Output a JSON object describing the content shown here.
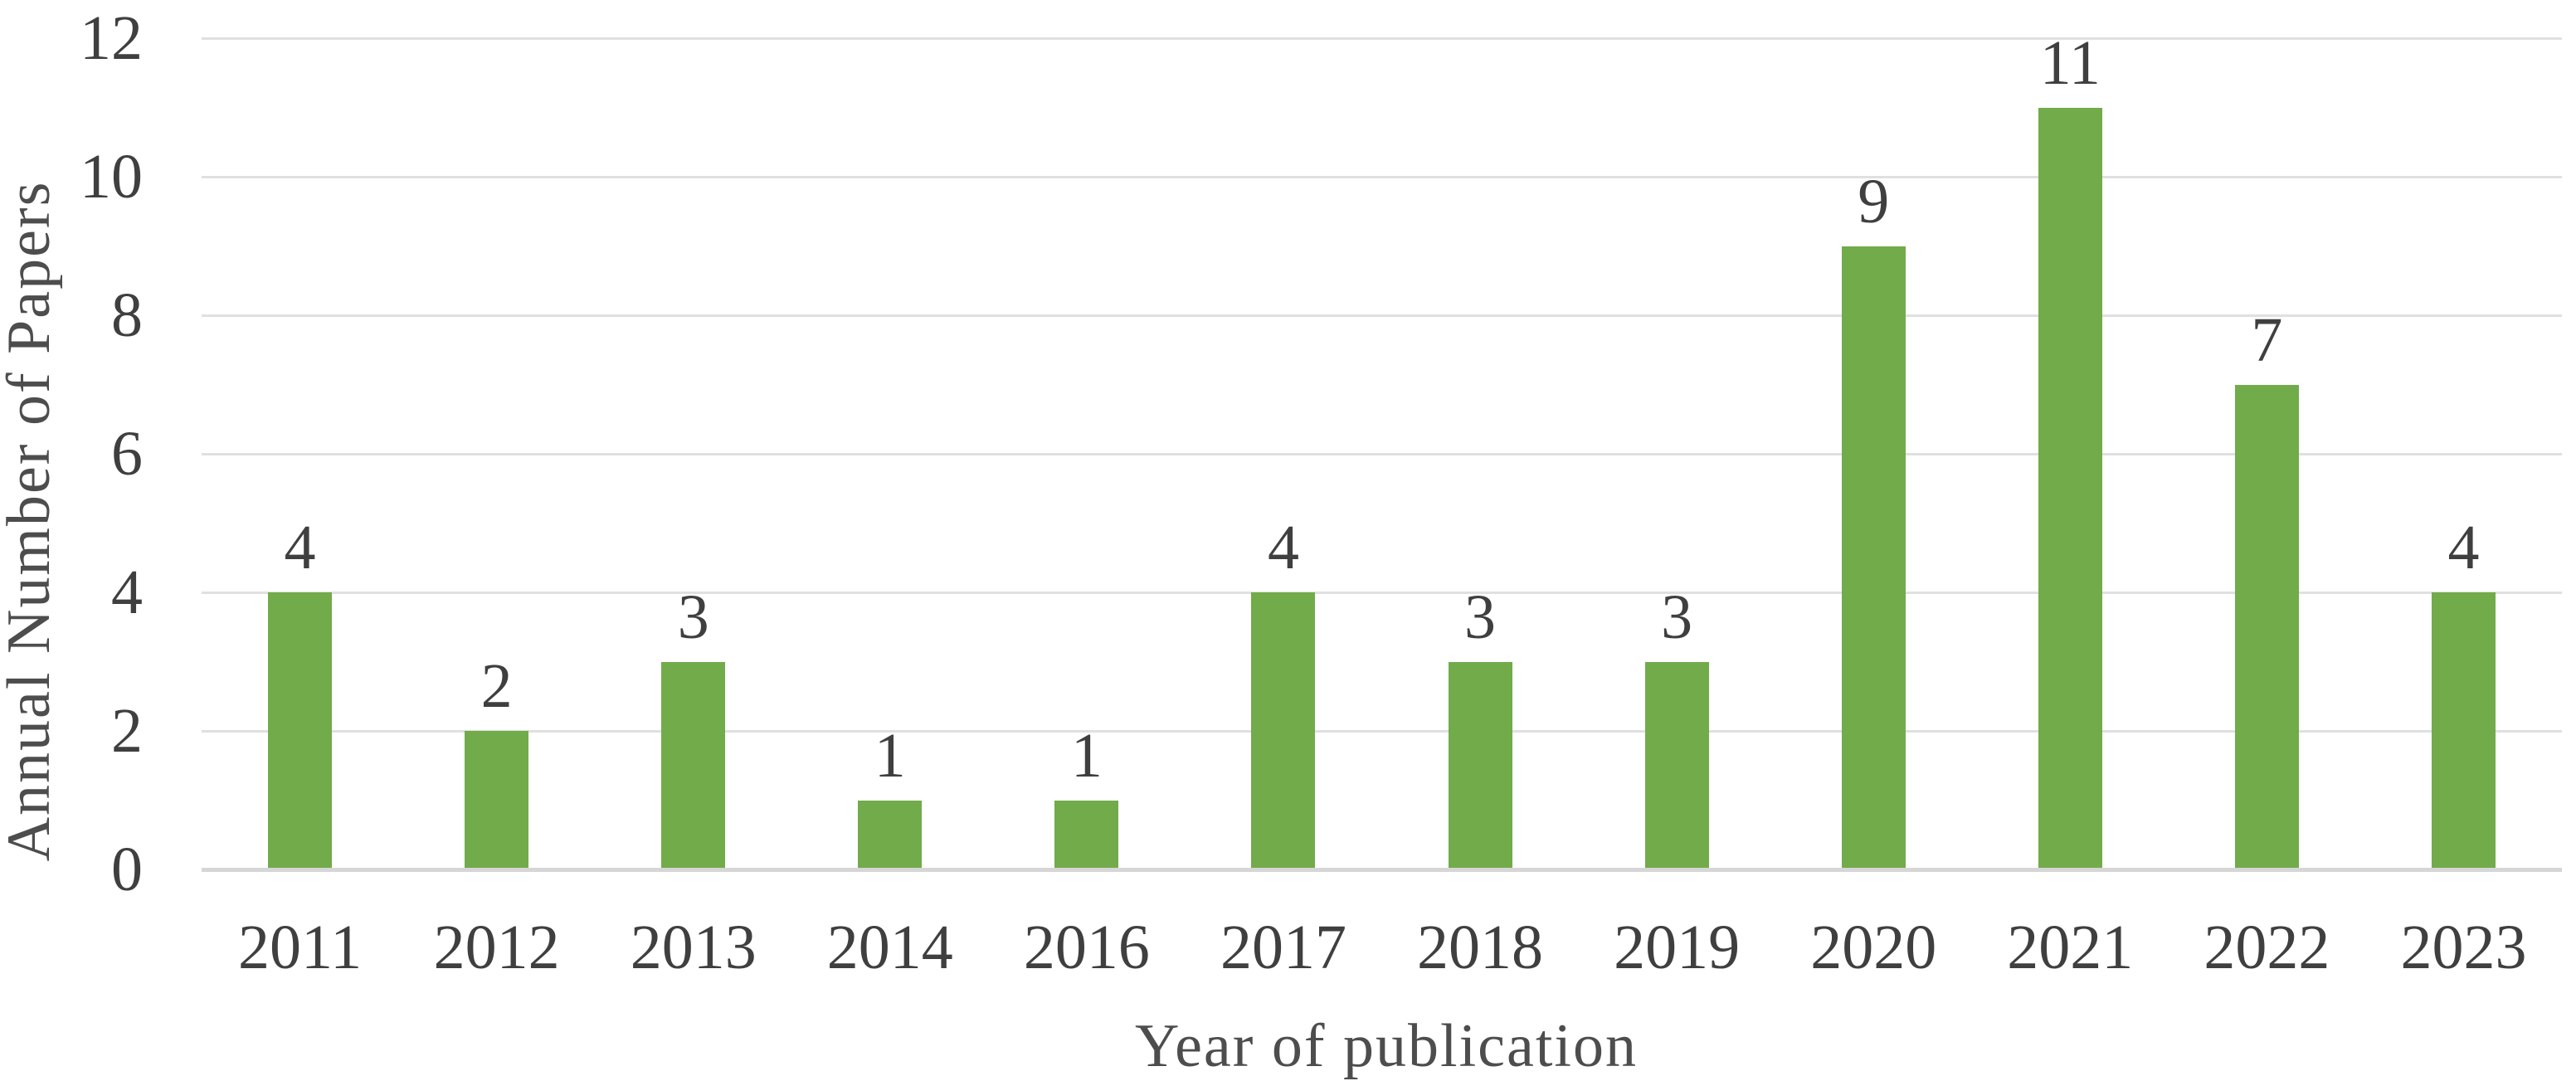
{
  "chart_data": {
    "type": "bar",
    "title": "",
    "xlabel": "Year of publication",
    "ylabel": "Annual Number of Papers",
    "categories": [
      "2011",
      "2012",
      "2013",
      "2014",
      "2016",
      "2017",
      "2018",
      "2019",
      "2020",
      "2021",
      "2022",
      "2023"
    ],
    "values": [
      4,
      2,
      3,
      1,
      1,
      4,
      3,
      3,
      9,
      11,
      7,
      4
    ],
    "show_data_labels": true,
    "ylim": [
      0,
      12
    ],
    "yticks": [
      0,
      2,
      4,
      6,
      8,
      10,
      12
    ],
    "grid": "horizontal",
    "legend": "none",
    "colors": {
      "bar": "#71AB4A",
      "gridline": "#E0E0E0",
      "axis_line": "#D6D6D6",
      "tick_text": "#3F3F3F",
      "title_text": "#4D4D4D"
    }
  }
}
